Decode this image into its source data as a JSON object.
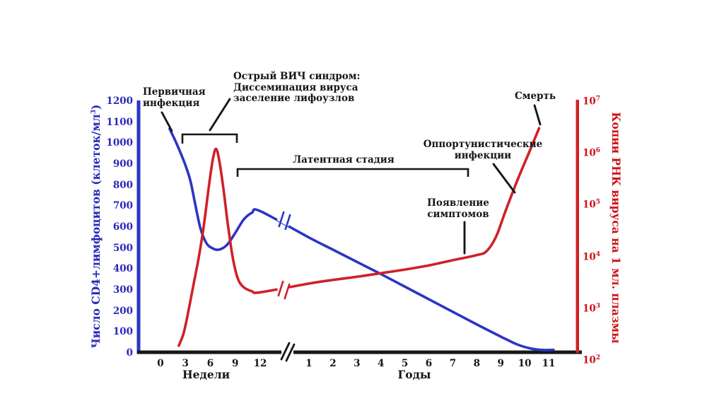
{
  "colors": {
    "cd4": "#2c35c2",
    "cd4_text": "#2828bc",
    "rna": "#ce2127",
    "rna_text": "#cc1318",
    "ink": "#161616",
    "background": "#ffffff"
  },
  "left_axis": {
    "label_prefix": "Число CD4+лимфоцитов (клеток/мл",
    "label_sup": "3",
    "label_suffix": ")",
    "ticks": [
      1200,
      1100,
      1000,
      900,
      800,
      700,
      600,
      500,
      400,
      300,
      200,
      100,
      0
    ]
  },
  "right_axis": {
    "label": "Копии РНК вируса на 1 мл. плазмы",
    "tick_base": "10",
    "tick_exponents": [
      7,
      6,
      5,
      4,
      3,
      2
    ]
  },
  "x_axis": {
    "weeks_title": "Недели",
    "years_title": "Годы",
    "week_ticks": [
      0,
      3,
      6,
      9,
      12
    ],
    "year_ticks": [
      1,
      2,
      3,
      4,
      5,
      6,
      7,
      8,
      9,
      10,
      11
    ]
  },
  "annotations": {
    "primary_infection": {
      "lines": [
        "Первичная",
        "инфекция"
      ]
    },
    "acute_hiv": {
      "lines": [
        "Острый ВИЧ синдром:",
        "Диссеминация вируса",
        "заселение лифоузлов"
      ]
    },
    "latent": {
      "label": "Латентная стадия"
    },
    "opportunistic": {
      "lines": [
        "Оппортунистические",
        "инфекции"
      ]
    },
    "symptoms": {
      "lines": [
        "Появление",
        "симптомов"
      ]
    },
    "death": {
      "label": "Смерть"
    }
  },
  "chart_data": {
    "type": "line",
    "title": "",
    "x_axis": {
      "segment_weeks": {
        "label": "Недели",
        "ticks": [
          0,
          3,
          6,
          9,
          12
        ]
      },
      "segment_years": {
        "label": "Годы",
        "ticks": [
          1,
          2,
          3,
          4,
          5,
          6,
          7,
          8,
          9,
          10,
          11
        ]
      },
      "axis_break_between_segments": true
    },
    "left_axis": {
      "label": "Число CD4+лимфоцитов (клеток/мл³)",
      "range": [
        0,
        1200
      ],
      "tick_step": 100
    },
    "right_axis": {
      "label": "Копии РНК вируса на 1 мл. плазмы",
      "scale": "log10",
      "exponent_range": [
        2,
        7
      ]
    },
    "legend": "none",
    "grid": false,
    "series": [
      {
        "name": "Число CD4+лимфоцитов",
        "axis": "left",
        "unit": "клеток/мл³",
        "color": "#2c35c2",
        "curve_break_mark": true,
        "weeks": [
          [
            1.1,
            1068
          ],
          [
            1.8,
            1010
          ],
          [
            2.4,
            955
          ],
          [
            3,
            895
          ],
          [
            3.6,
            820
          ],
          [
            4.2,
            705
          ],
          [
            4.8,
            595
          ],
          [
            5.5,
            525
          ],
          [
            6.2,
            500
          ],
          [
            7,
            492
          ],
          [
            8,
            515
          ],
          [
            9,
            572
          ],
          [
            10,
            635
          ],
          [
            11,
            668
          ],
          [
            12,
            676
          ]
        ],
        "years": [
          [
            1,
            550
          ],
          [
            2,
            492
          ],
          [
            3,
            434
          ],
          [
            4,
            376
          ],
          [
            5,
            316
          ],
          [
            6,
            256
          ],
          [
            7,
            196
          ],
          [
            8,
            136
          ],
          [
            9,
            78
          ],
          [
            9.7,
            40
          ],
          [
            10.3,
            20
          ],
          [
            10.8,
            14
          ],
          [
            11.2,
            15
          ]
        ]
      },
      {
        "name": "Копии РНК вируса",
        "axis": "right",
        "unit": "log10 копий/мл плазмы",
        "color": "#ce2127",
        "curve_break_mark": true,
        "weeks_log10": [
          [
            2.2,
            2.25
          ],
          [
            2.8,
            2.5
          ],
          [
            3.4,
            2.95
          ],
          [
            4,
            3.45
          ],
          [
            4.6,
            3.95
          ],
          [
            5.2,
            4.55
          ],
          [
            5.8,
            5.3
          ],
          [
            6.3,
            5.85
          ],
          [
            6.7,
            6.05
          ],
          [
            7.1,
            5.8
          ],
          [
            7.6,
            5.25
          ],
          [
            8.1,
            4.6
          ],
          [
            8.7,
            3.95
          ],
          [
            9.3,
            3.55
          ],
          [
            10,
            3.38
          ],
          [
            11,
            3.3
          ],
          [
            12,
            3.28
          ]
        ],
        "years_log10": [
          [
            1,
            3.45
          ],
          [
            2,
            3.52
          ],
          [
            3,
            3.58
          ],
          [
            4,
            3.65
          ],
          [
            5,
            3.72
          ],
          [
            6,
            3.8
          ],
          [
            7,
            3.9
          ],
          [
            8,
            4.0
          ],
          [
            8.4,
            4.07
          ],
          [
            8.8,
            4.35
          ],
          [
            9.2,
            4.85
          ],
          [
            9.7,
            5.45
          ],
          [
            10.2,
            6.0
          ],
          [
            10.6,
            6.45
          ]
        ]
      }
    ],
    "event_annotations": [
      {
        "text": "Первичная инфекция",
        "points_to": "начало падения CD4, ~1 неделя"
      },
      {
        "text": "Острый ВИЧ синдром: Диссеминация вируса заселение лифоузлов",
        "span_weeks": [
          3,
          9
        ]
      },
      {
        "text": "Латентная стадия",
        "span": "9 недель — 8 лет"
      },
      {
        "text": "Появление симптомов",
        "points_to": "~7-8 лет, РНК ~10⁴"
      },
      {
        "text": "Оппортунистические инфекции",
        "points_to": "~9-10 лет, подъём РНК"
      },
      {
        "text": "Смерть",
        "points_to": "~11 лет, РНК >10⁶"
      }
    ]
  }
}
